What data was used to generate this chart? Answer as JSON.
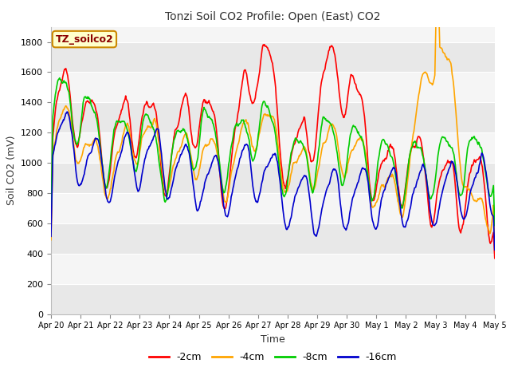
{
  "title": "Tonzi Soil CO2 Profile: Open (East) CO2",
  "xlabel": "Time",
  "ylabel": "Soil CO2 (mV)",
  "ylim": [
    0,
    1900
  ],
  "yticks": [
    0,
    200,
    400,
    600,
    800,
    1000,
    1200,
    1400,
    1600,
    1800
  ],
  "series_labels": [
    "-2cm",
    "-4cm",
    "-8cm",
    "-16cm"
  ],
  "series_colors": [
    "#ff0000",
    "#ffa500",
    "#00cc00",
    "#0000cc"
  ],
  "line_width": 1.2,
  "background_color": "#ffffff",
  "plot_bg_color": "#f0f0f0",
  "band_colors": [
    "#e8e8e8",
    "#f5f5f5"
  ],
  "xtick_labels": [
    "Apr 20",
    "Apr 21",
    "Apr 22",
    "Apr 23",
    "Apr 24",
    "Apr 25",
    "Apr 26",
    "Apr 27",
    "Apr 28",
    "Apr 29",
    "Apr 30",
    "May 1",
    "May 2",
    "May 3",
    "May 4",
    "May 5"
  ],
  "n_days": 15,
  "pts_per_day": 48,
  "annotation_text": "TZ_soilco2",
  "annotation_color": "#8B0000",
  "annotation_bg": "#ffffcc",
  "annotation_edge": "#cc8800"
}
